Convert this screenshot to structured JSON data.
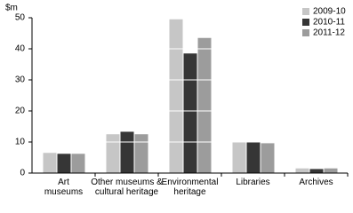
{
  "chart_data": {
    "type": "bar",
    "y_label": "$m",
    "categories": [
      "Art\nmuseums",
      "Other museums &\ncultural heritage",
      "Environmental\nheritage",
      "Libraries",
      "Archives"
    ],
    "series": [
      {
        "name": "2009-10",
        "color": "#c6c6c6",
        "values": [
          6.5,
          12.5,
          49.5,
          10.0,
          1.5
        ]
      },
      {
        "name": "2010-11",
        "color": "#363636",
        "values": [
          6.2,
          13.3,
          38.5,
          10.0,
          1.3
        ]
      },
      {
        "name": "2011-12",
        "color": "#9c9c9c",
        "values": [
          6.2,
          12.5,
          43.5,
          9.6,
          1.5
        ]
      }
    ],
    "ylim": [
      0,
      50
    ],
    "yticks": [
      0,
      10,
      20,
      30,
      40,
      50
    ],
    "grid": true,
    "legend": "top-right"
  }
}
